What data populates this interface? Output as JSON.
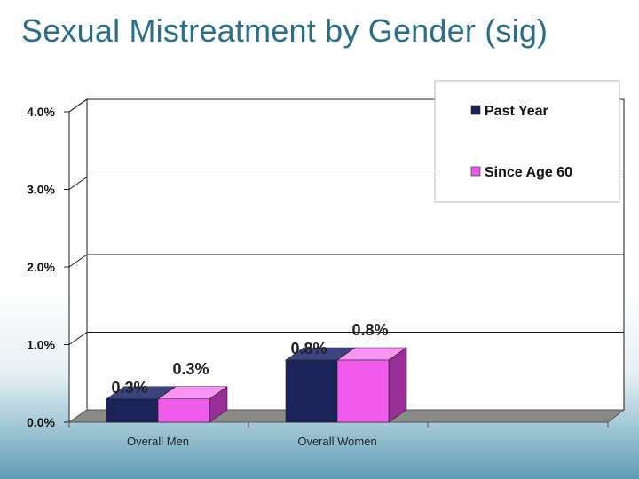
{
  "slide": {
    "title": "Sexual Mistreatment by Gender (sig)"
  },
  "colors": {
    "past_year": "#1c2359",
    "past_year_side": "#0f1336",
    "past_year_top": "#3c4480",
    "since_age_60": "#f15bec",
    "since_age_60_side": "#9a2e99",
    "since_age_60_top": "#f895f4",
    "floor": "#8a8a8a",
    "grid": "#1a1a1a",
    "title": "#2a6f8a"
  },
  "chart_data": {
    "type": "bar",
    "title": "",
    "xlabel": "",
    "ylabel": "",
    "categories": [
      "Overall Men",
      "Overall Women"
    ],
    "series": [
      {
        "name": "Past Year",
        "values": [
          0.3,
          0.8
        ],
        "labels": [
          "0.3%",
          "0.8%"
        ]
      },
      {
        "name": "Since Age 60",
        "values": [
          0.3,
          0.8
        ],
        "labels": [
          "0.3%",
          "0.8%"
        ]
      }
    ],
    "ylim": [
      0,
      4
    ],
    "yticks": [
      0,
      1,
      2,
      3,
      4
    ],
    "ytick_labels": [
      "0.0%",
      "1.0%",
      "2.0%",
      "3.0%",
      "4.0%"
    ],
    "grid": true,
    "legend_position": "top-right"
  }
}
